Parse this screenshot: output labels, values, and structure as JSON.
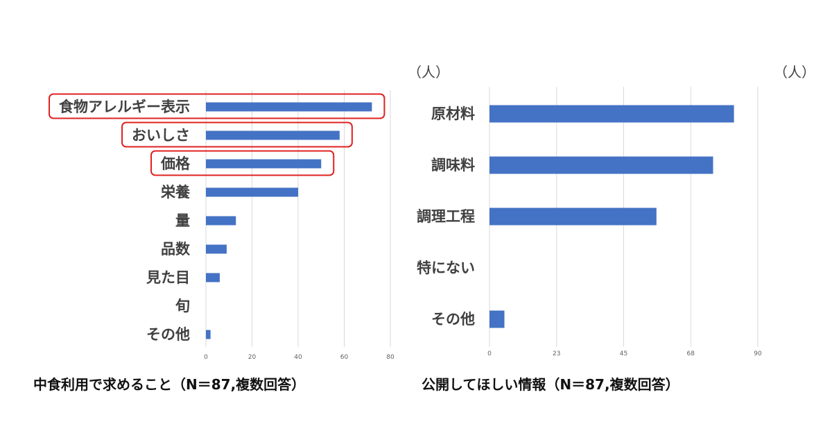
{
  "charts": [
    {
      "unit_label": "（人）",
      "caption": "中食利用で求めること（N＝87,複数回答）"
    },
    {
      "unit_label": "（人）",
      "caption": "公開してほしい情報（N＝87,複数回答）"
    }
  ],
  "chart_data": [
    {
      "type": "bar",
      "orientation": "horizontal",
      "title": "中食利用で求めること（N＝87,複数回答）",
      "unit": "（人）",
      "categories": [
        "食物アレルギー表示",
        "おいしさ",
        "価格",
        "栄養",
        "量",
        "品数",
        "見た目",
        "旬",
        "その他"
      ],
      "values": [
        72,
        58,
        50,
        40,
        13,
        9,
        6,
        0,
        2
      ],
      "xlim": [
        0,
        80
      ],
      "ticks": [
        "0",
        "20",
        "40",
        "60",
        "80"
      ],
      "tick_values": [
        0,
        20,
        40,
        60,
        80
      ],
      "grid": true,
      "bar_color": "#4472c4",
      "highlighted": [
        "食物アレルギー表示",
        "おいしさ",
        "価格"
      ],
      "highlight_color": "#e02020"
    },
    {
      "type": "bar",
      "orientation": "horizontal",
      "title": "公開してほしい情報（N＝87,複数回答）",
      "unit": "（人）",
      "categories": [
        "原材料",
        "調味料",
        "調理工程",
        "特にない",
        "その他"
      ],
      "values": [
        82,
        75,
        56,
        0,
        5
      ],
      "xlim": [
        0,
        90
      ],
      "ticks": [
        "0",
        "23",
        "45",
        "68",
        "90"
      ],
      "tick_values": [
        0,
        22.5,
        45,
        67.5,
        90
      ],
      "grid": true,
      "bar_color": "#4472c4"
    }
  ]
}
